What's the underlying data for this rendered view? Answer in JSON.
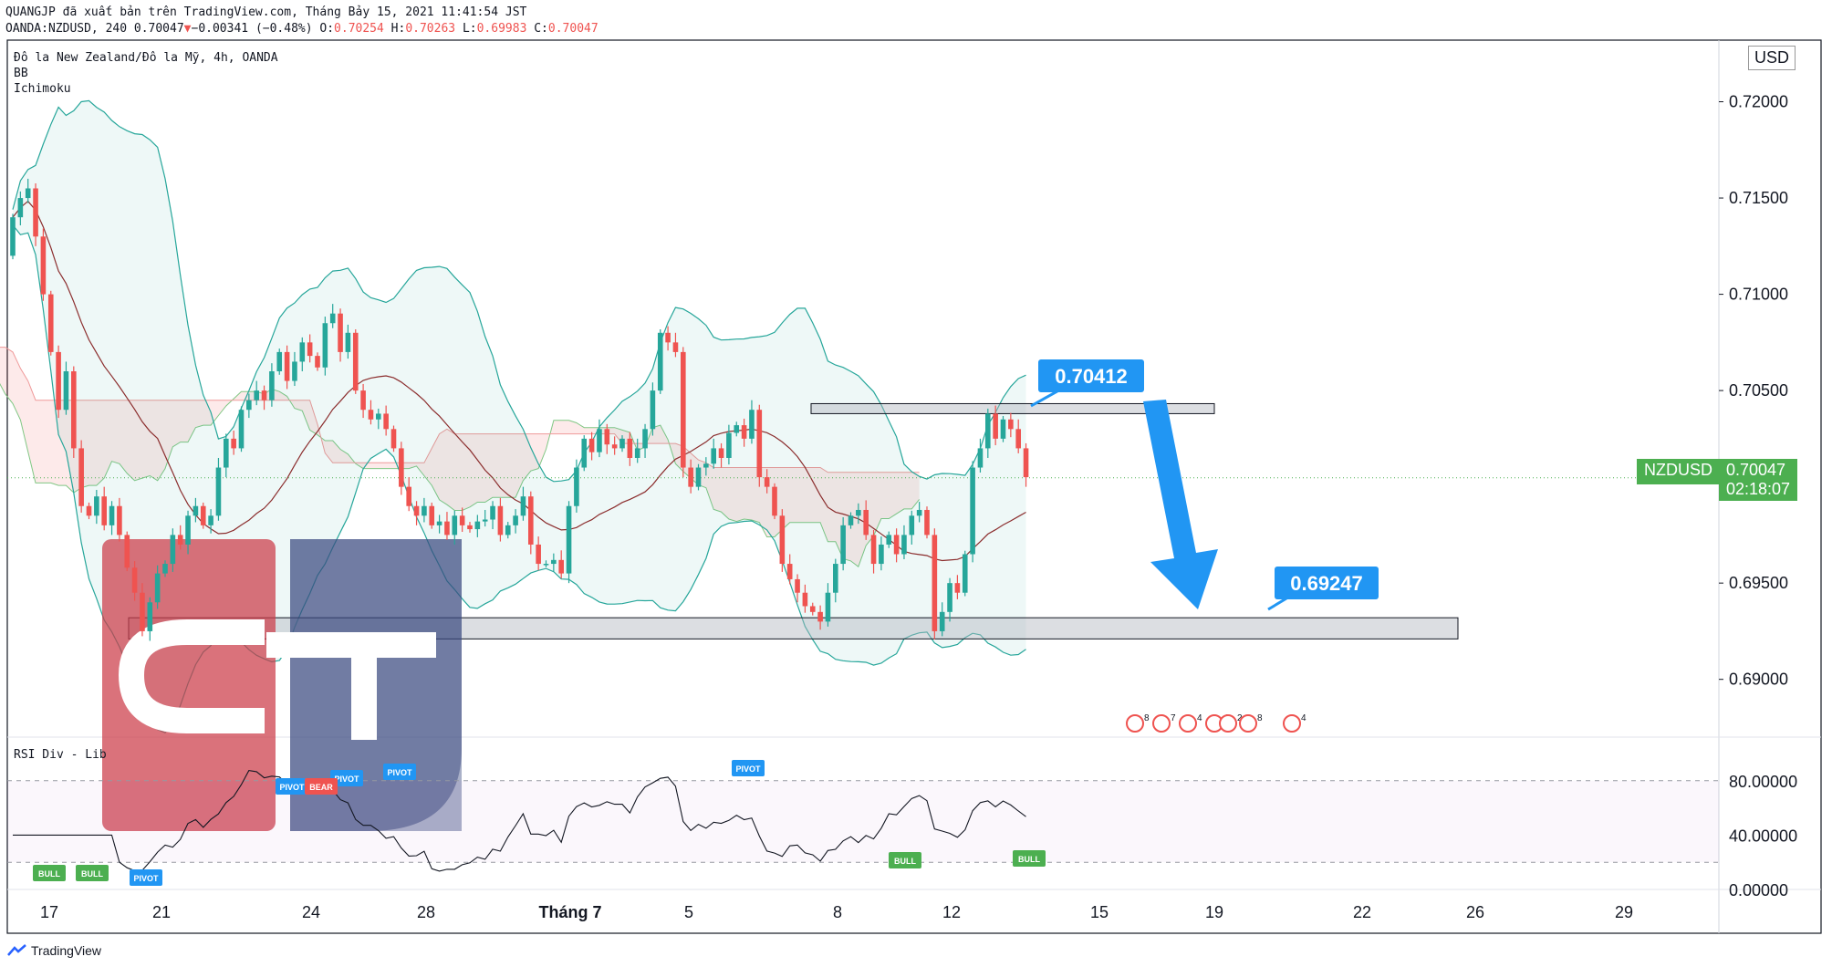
{
  "header": {
    "line1": "QUANGJP đã xuất bản trên TradingView.com, Tháng Bảy 15, 2021 11:41:54 JST",
    "line2_prefix": "OANDA:NZDUSD, 240 0.70047",
    "arrow": "▼",
    "change": "−0.00341 (−0.48%)",
    "o_label": "O:",
    "o_val": "0.70254",
    "h_label": "H:",
    "h_val": "0.70263",
    "l_label": "L:",
    "l_val": "0.69983",
    "c_label": "C:",
    "c_val": "0.70047"
  },
  "legend": {
    "symbol": "Đô la New Zealand/Đô la Mỹ, 4h, OANDA",
    "bb": "BB",
    "ichimoku": "Ichimoku",
    "rsi": "RSI Div - Lib"
  },
  "currency": "USD",
  "price_axis": {
    "ticks": [
      "0.72000",
      "0.71500",
      "0.71000",
      "0.70500",
      "0.70000",
      "0.69500",
      "0.69000"
    ]
  },
  "rsi_axis": {
    "ticks": [
      "80.00000",
      "40.00000",
      "0.00000"
    ]
  },
  "time_axis": {
    "ticks": [
      "17",
      "21",
      "24",
      "28",
      "Tháng 7",
      "5",
      "8",
      "12",
      "15",
      "19",
      "22",
      "26",
      "29"
    ]
  },
  "last_price": {
    "symbol": "NZDUSD",
    "price": "0.70047",
    "countdown": "02:18:07"
  },
  "callouts": {
    "resistance": "0.70412",
    "target": "0.69247"
  },
  "rsi_tags": {
    "bull": [
      "BULL",
      "BULL",
      "BULL",
      "BULL"
    ],
    "pivot": [
      "PIVOT",
      "PIVOT",
      "PIVOT",
      "PIVOT",
      "PIVOT"
    ],
    "bear": "BEAR"
  },
  "event_badges": [
    "8",
    "7",
    "4",
    "4",
    "2",
    "8",
    "4"
  ],
  "footer": {
    "brand": "TradingView"
  },
  "colors": {
    "up": "#26a69a",
    "down": "#ef5350",
    "accent": "#2196f3",
    "bull_tag": "#4caf50",
    "logo_red": "#cc3b48",
    "logo_blue": "#3a4a7f"
  },
  "chart_data": {
    "type": "candlestick",
    "symbol": "NZDUSD",
    "timeframe": "4h",
    "indicators": [
      "BB",
      "Ichimoku",
      "RSI Div - Lib"
    ],
    "price_range": [
      0.687,
      0.7232
    ],
    "rsi_range": [
      0,
      100
    ],
    "rsi_levels": [
      80,
      20
    ],
    "resistance_zone": [
      0.7038,
      0.70432
    ],
    "support_zone": [
      0.6921,
      0.6932
    ],
    "last_close": 0.70047,
    "projection_from": 0.70412,
    "projection_to": 0.69247,
    "date_ticks": [
      "17",
      "21",
      "24",
      "28",
      "Tháng 7",
      "5",
      "8",
      "12",
      "15",
      "19",
      "22",
      "26",
      "29"
    ],
    "closes": [
      0.714,
      0.715,
      0.7155,
      0.713,
      0.71,
      0.707,
      0.704,
      0.706,
      0.702,
      0.699,
      0.6985,
      0.6995,
      0.698,
      0.699,
      0.6975,
      0.6958,
      0.6945,
      0.6925,
      0.694,
      0.6955,
      0.696,
      0.6975,
      0.697,
      0.6985,
      0.699,
      0.698,
      0.6985,
      0.701,
      0.7025,
      0.702,
      0.704,
      0.7045,
      0.705,
      0.7045,
      0.706,
      0.707,
      0.7055,
      0.7065,
      0.7075,
      0.7068,
      0.7062,
      0.7085,
      0.709,
      0.707,
      0.708,
      0.705,
      0.704,
      0.7035,
      0.7038,
      0.703,
      0.702,
      0.7,
      0.699,
      0.6985,
      0.699,
      0.698,
      0.6982,
      0.6975,
      0.6985,
      0.698,
      0.6978,
      0.6982,
      0.6983,
      0.699,
      0.6975,
      0.698,
      0.6985,
      0.6995,
      0.697,
      0.696,
      0.696,
      0.6962,
      0.6955,
      0.699,
      0.701,
      0.7025,
      0.7018,
      0.703,
      0.7022,
      0.702,
      0.7025,
      0.7015,
      0.702,
      0.703,
      0.705,
      0.708,
      0.7075,
      0.707,
      0.701,
      0.7,
      0.701,
      0.7012,
      0.702,
      0.7015,
      0.7028,
      0.7032,
      0.7025,
      0.704,
      0.7005,
      0.7,
      0.6985,
      0.696,
      0.6952,
      0.6945,
      0.6938,
      0.6935,
      0.693,
      0.6945,
      0.696,
      0.698,
      0.6985,
      0.6988,
      0.6975,
      0.696,
      0.697,
      0.6975,
      0.6965,
      0.6975,
      0.6985,
      0.6988,
      0.6975,
      0.6925,
      0.6935,
      0.695,
      0.6945,
      0.6965,
      0.701,
      0.702,
      0.7038,
      0.7025,
      0.7035,
      0.703,
      0.702,
      0.7005
    ]
  }
}
